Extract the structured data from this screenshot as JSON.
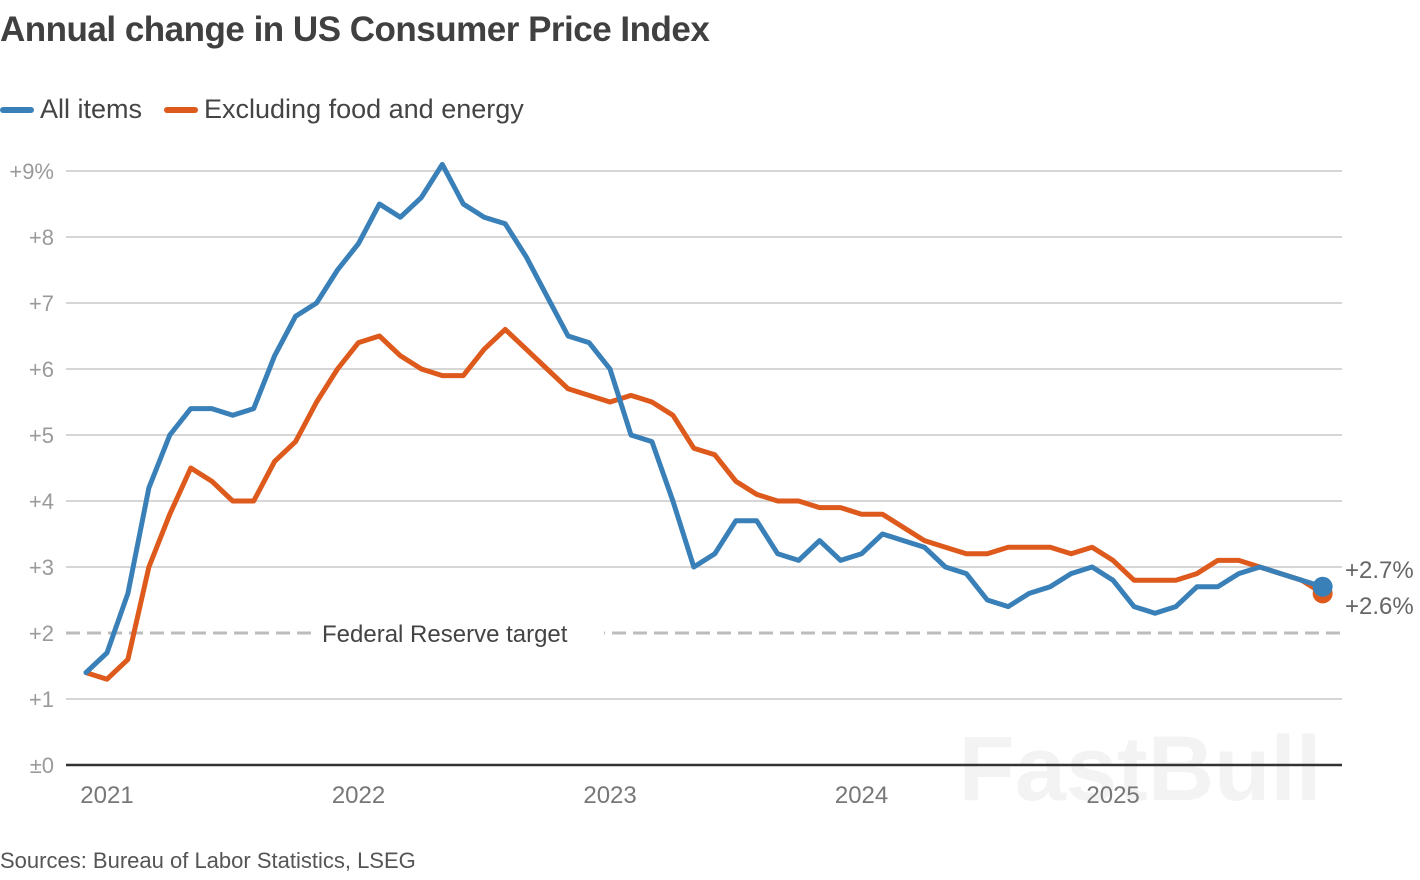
{
  "header": {
    "title": "Annual change in US Consumer Price Index"
  },
  "legend": [
    {
      "label": "All items",
      "color": "#3a80b8"
    },
    {
      "label": "Excluding food and energy",
      "color": "#dd5a1c"
    }
  ],
  "footer": {
    "source": "Sources: Bureau of Labor Statistics, LSEG"
  },
  "watermark": "FastBull",
  "chart_data": {
    "type": "line",
    "title": "Annual change in US Consumer Price Index",
    "xlabel": "",
    "ylabel": "",
    "x_start": "2021-01",
    "x_frequency": "monthly",
    "x_tick_labels": [
      "2021",
      "2022",
      "2023",
      "2024",
      "2025"
    ],
    "y_tick_labels": [
      "±0",
      "+1",
      "+2",
      "+3",
      "+4",
      "+5",
      "+6",
      "+7",
      "+8",
      "+9%"
    ],
    "y_ticks": [
      0,
      1,
      2,
      3,
      4,
      5,
      6,
      7,
      8,
      9
    ],
    "ylim": [
      0,
      9
    ],
    "grid": true,
    "legend_position": "top-left",
    "reference_line": {
      "value": 2,
      "label": "Federal Reserve target",
      "style": "dashed"
    },
    "end_labels": [
      "+2.7%",
      "+2.6%"
    ],
    "series": [
      {
        "name": "All items",
        "color": "#3a80b8",
        "values": [
          1.4,
          1.7,
          2.6,
          4.2,
          5.0,
          5.4,
          5.4,
          5.3,
          5.4,
          6.2,
          6.8,
          7.0,
          7.5,
          7.9,
          8.5,
          8.3,
          8.6,
          9.1,
          8.5,
          8.3,
          8.2,
          7.7,
          7.1,
          6.5,
          6.4,
          6.0,
          5.0,
          4.9,
          4.0,
          3.0,
          3.2,
          3.7,
          3.7,
          3.2,
          3.1,
          3.4,
          3.1,
          3.2,
          3.5,
          3.4,
          3.3,
          3.0,
          2.9,
          2.5,
          2.4,
          2.6,
          2.7,
          2.9,
          3.0,
          2.8,
          2.4,
          2.3,
          2.4,
          2.7,
          2.7,
          2.9,
          3.0,
          2.9,
          2.8,
          2.7
        ]
      },
      {
        "name": "Excluding food and energy",
        "color": "#dd5a1c",
        "values": [
          1.4,
          1.3,
          1.6,
          3.0,
          3.8,
          4.5,
          4.3,
          4.0,
          4.0,
          4.6,
          4.9,
          5.5,
          6.0,
          6.4,
          6.5,
          6.2,
          6.0,
          5.9,
          5.9,
          6.3,
          6.6,
          6.3,
          6.0,
          5.7,
          5.6,
          5.5,
          5.6,
          5.5,
          5.3,
          4.8,
          4.7,
          4.3,
          4.1,
          4.0,
          4.0,
          3.9,
          3.9,
          3.8,
          3.8,
          3.6,
          3.4,
          3.3,
          3.2,
          3.2,
          3.3,
          3.3,
          3.3,
          3.2,
          3.3,
          3.1,
          2.8,
          2.8,
          2.8,
          2.9,
          3.1,
          3.1,
          3.0,
          2.9,
          2.8,
          2.6
        ]
      }
    ]
  }
}
